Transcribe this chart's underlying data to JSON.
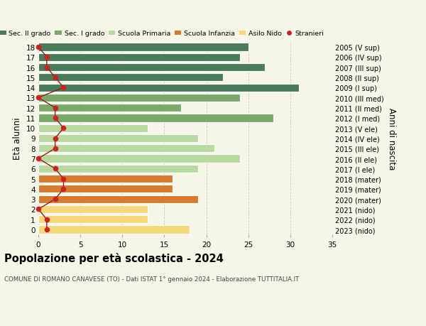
{
  "ages": [
    18,
    17,
    16,
    15,
    14,
    13,
    12,
    11,
    10,
    9,
    8,
    7,
    6,
    5,
    4,
    3,
    2,
    1,
    0
  ],
  "bar_values": [
    25,
    24,
    27,
    22,
    31,
    24,
    17,
    28,
    13,
    19,
    21,
    24,
    19,
    16,
    16,
    19,
    13,
    13,
    18
  ],
  "stranieri": [
    0,
    1,
    1,
    2,
    3,
    0,
    2,
    2,
    3,
    2,
    2,
    0,
    2,
    3,
    3,
    2,
    0,
    1,
    1
  ],
  "right_labels": [
    "2005 (V sup)",
    "2006 (IV sup)",
    "2007 (III sup)",
    "2008 (II sup)",
    "2009 (I sup)",
    "2010 (III med)",
    "2011 (II med)",
    "2012 (I med)",
    "2013 (V ele)",
    "2014 (IV ele)",
    "2015 (III ele)",
    "2016 (II ele)",
    "2017 (I ele)",
    "2018 (mater)",
    "2019 (mater)",
    "2020 (mater)",
    "2021 (nido)",
    "2022 (nido)",
    "2023 (nido)"
  ],
  "bar_colors": [
    "#4a7c59",
    "#4a7c59",
    "#4a7c59",
    "#4a7c59",
    "#4a7c59",
    "#7aaa6a",
    "#7aaa6a",
    "#7aaa6a",
    "#b8d9a0",
    "#b8d9a0",
    "#b8d9a0",
    "#b8d9a0",
    "#b8d9a0",
    "#d97b2e",
    "#d97b2e",
    "#d97b2e",
    "#f5d87a",
    "#f5d87a",
    "#f5d87a"
  ],
  "legend_labels": [
    "Sec. II grado",
    "Sec. I grado",
    "Scuola Primaria",
    "Scuola Infanzia",
    "Asilo Nido",
    "Stranieri"
  ],
  "legend_colors": [
    "#4a7c59",
    "#7aaa6a",
    "#b8d9a0",
    "#d97b2e",
    "#f5d87a",
    "#cc2222"
  ],
  "title": "Popolazione per età scolastica - 2024",
  "subtitle": "COMUNE DI ROMANO CANAVESE (TO) - Dati ISTAT 1° gennaio 2024 - Elaborazione TUTTITALIA.IT",
  "ylabel_left": "Età alunni",
  "ylabel_right": "Anni di nascita",
  "xlim": [
    0,
    35
  ],
  "xticks": [
    0,
    5,
    10,
    15,
    20,
    25,
    30,
    35
  ],
  "bar_height": 0.78,
  "stranieri_color": "#cc2222",
  "line_color": "#8b2020",
  "bg_color": "#f5f5e8",
  "grid_color": "#ccccbb"
}
